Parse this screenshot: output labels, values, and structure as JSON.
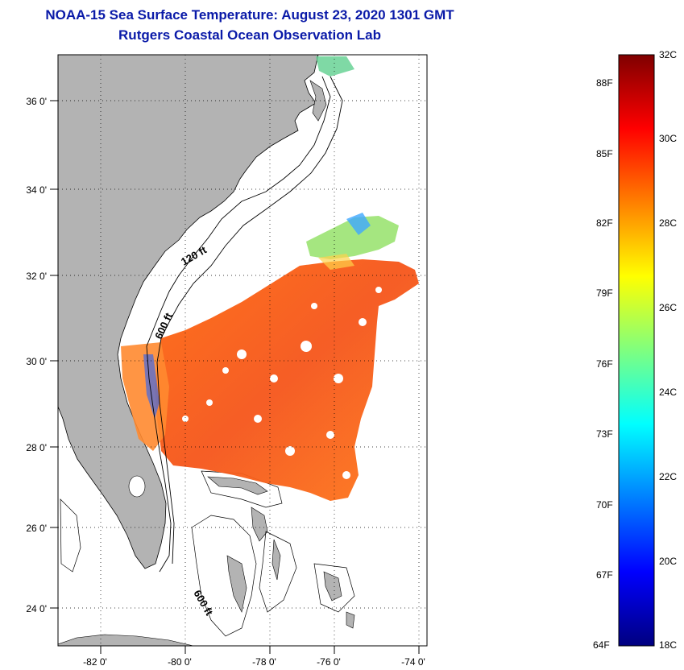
{
  "header": {
    "title": "NOAA-15 Sea Surface Temperature:  August 23, 2020 1301 GMT",
    "subtitle": "Rutgers Coastal Ocean Observation Lab"
  },
  "map": {
    "lon_ticks": [
      "-82 0'",
      "-80 0'",
      "-78 0'",
      "-76 0'",
      "-74 0'"
    ],
    "lat_ticks": [
      "36 0'",
      "34 0'",
      "32 0'",
      "30 0'",
      "28 0'",
      "26 0'",
      "24 0'"
    ],
    "isobath_labels": [
      "120 ft",
      "600 ft",
      "600 ft"
    ],
    "colors": {
      "land": "#b3b3b3",
      "ocean": "#ffffff",
      "grid": "#000000"
    }
  },
  "colorbar": {
    "fahrenheit": [
      "88F",
      "85F",
      "82F",
      "79F",
      "76F",
      "73F",
      "70F",
      "67F",
      "64F"
    ],
    "celsius": [
      "32C",
      "30C",
      "28C",
      "26C",
      "24C",
      "22C",
      "20C",
      "18C"
    ],
    "range_c": [
      18,
      32
    ],
    "colormap": "jet"
  }
}
